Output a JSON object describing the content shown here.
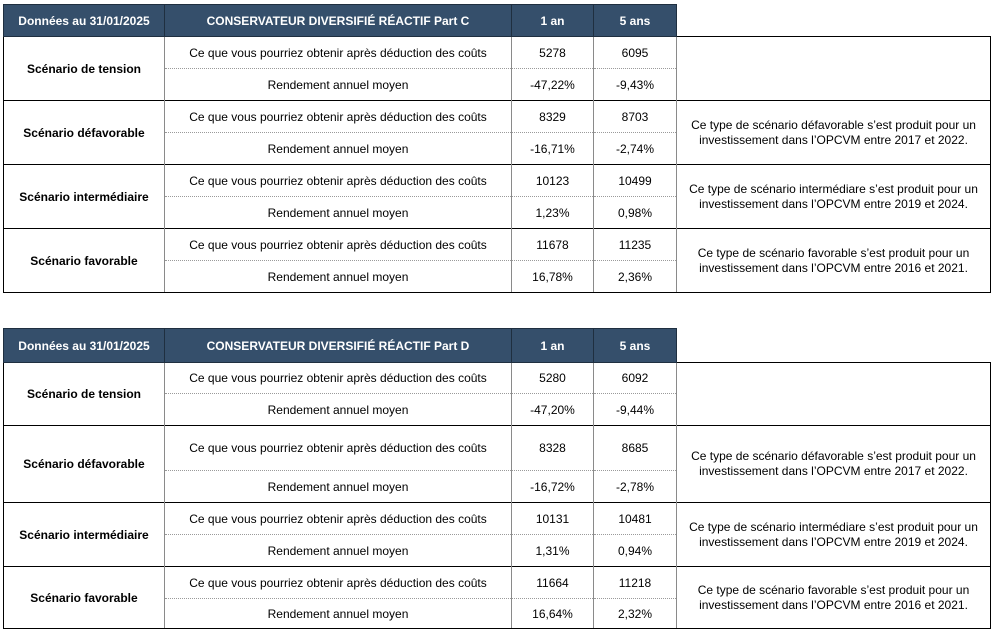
{
  "tables": [
    {
      "header": {
        "date": "Données au 31/01/2025",
        "fund": "CONSERVATEUR DIVERSIFIÉ RÉACTIF Part C",
        "y1": "1 an",
        "y5": "5 ans"
      },
      "rows": [
        {
          "scenario": "Scénario de tension",
          "label1": "Ce que vous pourriez obtenir après déduction des coûts",
          "v1_1": "5278",
          "v1_5": "6095",
          "label2": "Rendement annuel moyen",
          "v2_1": "-47,22%",
          "v2_5": "-9,43%",
          "note": ""
        },
        {
          "scenario": "Scénario défavorable",
          "label1": "Ce que vous pourriez obtenir après déduction des coûts",
          "v1_1": "8329",
          "v1_5": "8703",
          "label2": "Rendement annuel moyen",
          "v2_1": "-16,71%",
          "v2_5": "-2,74%",
          "note": "Ce type de scénario défavorable s’est produit pour un investissement dans l’OPCVM entre 2017 et 2022."
        },
        {
          "scenario": "Scénario intermédiaire",
          "label1": "Ce que vous pourriez obtenir après déduction des coûts",
          "v1_1": "10123",
          "v1_5": "10499",
          "label2": "Rendement annuel moyen",
          "v2_1": "1,23%",
          "v2_5": "0,98%",
          "note": "Ce type de scénario intermédiare s’est produit pour un investissement dans l’OPCVM entre 2019 et 2024."
        },
        {
          "scenario": "Scénario favorable",
          "label1": "Ce que vous pourriez obtenir après déduction des coûts",
          "v1_1": "11678",
          "v1_5": "11235",
          "label2": "Rendement annuel moyen",
          "v2_1": "16,78%",
          "v2_5": "2,36%",
          "note": "Ce type de scénario favorable s’est produit pour un investissement dans l’OPCVM entre 2016 et 2021."
        }
      ]
    },
    {
      "header": {
        "date": "Données au 31/01/2025",
        "fund": "CONSERVATEUR DIVERSIFIÉ RÉACTIF Part D",
        "y1": "1 an",
        "y5": "5 ans"
      },
      "rows": [
        {
          "scenario": "Scénario de tension",
          "label1": "Ce que vous pourriez obtenir après déduction des coûts",
          "v1_1": "5280",
          "v1_5": "6092",
          "label2": "Rendement annuel moyen",
          "v2_1": "-47,20%",
          "v2_5": "-9,44%",
          "note": ""
        },
        {
          "scenario": "Scénario défavorable",
          "label1": "Ce que vous pourriez obtenir après déduction des coûts",
          "v1_1": "8328",
          "v1_5": "8685",
          "label2": "Rendement annuel moyen",
          "v2_1": "-16,72%",
          "v2_5": "-2,78%",
          "note": "Ce type de scénario défavorable s’est produit pour un investissement dans l’OPCVM entre 2017 et 2022."
        },
        {
          "scenario": "Scénario intermédiaire",
          "label1": "Ce que vous pourriez obtenir après déduction des coûts",
          "v1_1": "10131",
          "v1_5": "10481",
          "label2": "Rendement annuel moyen",
          "v2_1": "1,31%",
          "v2_5": "0,94%",
          "note": "Ce type de scénario intermédiare s’est produit pour un investissement dans l’OPCVM entre 2019 et 2024."
        },
        {
          "scenario": "Scénario favorable",
          "label1": "Ce que vous pourriez obtenir après déduction des coûts",
          "v1_1": "11664",
          "v1_5": "11218",
          "label2": "Rendement annuel moyen",
          "v2_1": "16,64%",
          "v2_5": "2,32%",
          "note": "Ce type de scénario favorable s’est produit pour un investissement dans l’OPCVM entre 2016 et 2021."
        }
      ]
    }
  ]
}
